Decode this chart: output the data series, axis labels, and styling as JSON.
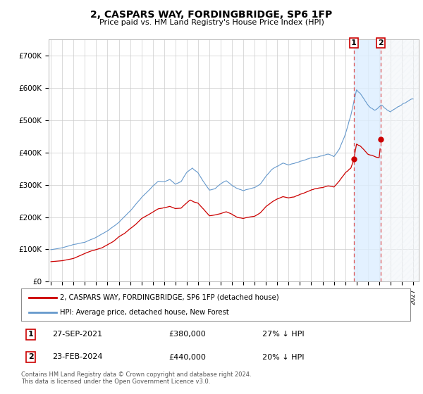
{
  "title": "2, CASPARS WAY, FORDINGBRIDGE, SP6 1FP",
  "subtitle": "Price paid vs. HM Land Registry's House Price Index (HPI)",
  "footer": "Contains HM Land Registry data © Crown copyright and database right 2024.\nThis data is licensed under the Open Government Licence v3.0.",
  "legend_line1": "2, CASPARS WAY, FORDINGBRIDGE, SP6 1FP (detached house)",
  "legend_line2": "HPI: Average price, detached house, New Forest",
  "transaction1_date": "27-SEP-2021",
  "transaction1_price": "£380,000",
  "transaction1_hpi": "27% ↓ HPI",
  "transaction2_date": "23-FEB-2024",
  "transaction2_price": "£440,000",
  "transaction2_hpi": "20% ↓ HPI",
  "ylim": [
    0,
    750000
  ],
  "yticks": [
    0,
    100000,
    200000,
    300000,
    400000,
    500000,
    600000,
    700000
  ],
  "ytick_labels": [
    "£0",
    "£100K",
    "£200K",
    "£300K",
    "£400K",
    "£500K",
    "£600K",
    "£700K"
  ],
  "red_color": "#cc0000",
  "blue_color": "#6699cc",
  "background_color": "#ffffff",
  "grid_color": "#cccccc",
  "vline_color": "#dd5555",
  "shaded_color": "#ddeeff",
  "transaction1_x": 2021.75,
  "transaction1_y": 380000,
  "transaction2_x": 2024.15,
  "transaction2_y": 440000,
  "vline1_x": 2021.75,
  "vline2_x": 2024.15,
  "xmin": 1994.8,
  "xmax": 2027.5,
  "xtick_years": [
    1995,
    1996,
    1997,
    1998,
    1999,
    2000,
    2001,
    2002,
    2003,
    2004,
    2005,
    2006,
    2007,
    2008,
    2009,
    2010,
    2011,
    2012,
    2013,
    2014,
    2015,
    2016,
    2017,
    2018,
    2019,
    2020,
    2021,
    2022,
    2023,
    2024,
    2025,
    2026,
    2027
  ]
}
